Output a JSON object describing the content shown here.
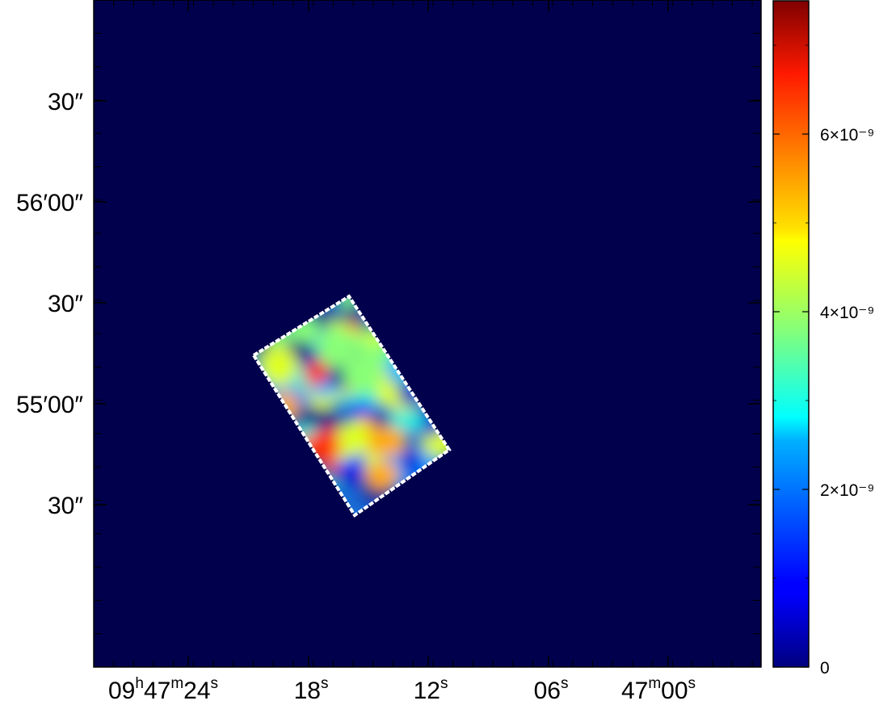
{
  "chart_data": {
    "type": "heatmap",
    "title": "",
    "xlabel": "",
    "ylabel": "",
    "x_ticks": [
      {
        "h": "09",
        "m": "47",
        "s": "24",
        "label": "09h47m24s"
      },
      {
        "s": "18",
        "label": "18s"
      },
      {
        "s": "12",
        "label": "12s"
      },
      {
        "s": "06",
        "label": "06s"
      },
      {
        "m": "47",
        "s": "00",
        "label": "47m00s"
      }
    ],
    "y_ticks": [
      {
        "value": "30″",
        "deg": "",
        "min": "",
        "sec": "30"
      },
      {
        "value": "56′00″",
        "deg": "",
        "min": "56",
        "sec": "00"
      },
      {
        "value": "30″",
        "deg": "",
        "min": "",
        "sec": "30"
      },
      {
        "value": "55′00″",
        "deg": "",
        "min": "55",
        "sec": "00"
      },
      {
        "value": "30″",
        "deg": "",
        "min": "",
        "sec": "30"
      }
    ],
    "colorbar": {
      "colormap": "jet",
      "range": [
        0,
        7.5e-09
      ],
      "ticks": [
        {
          "value": 0,
          "label": "0"
        },
        {
          "value": 2e-09,
          "label": "2×10⁻⁹"
        },
        {
          "value": 4e-09,
          "label": "4×10⁻⁹"
        },
        {
          "value": 6e-09,
          "label": "6×10⁻⁹"
        }
      ]
    },
    "background_color": "#00004c",
    "footprint_outline_color": "#ffffff",
    "footprint_shape": "rotated rectangle"
  }
}
